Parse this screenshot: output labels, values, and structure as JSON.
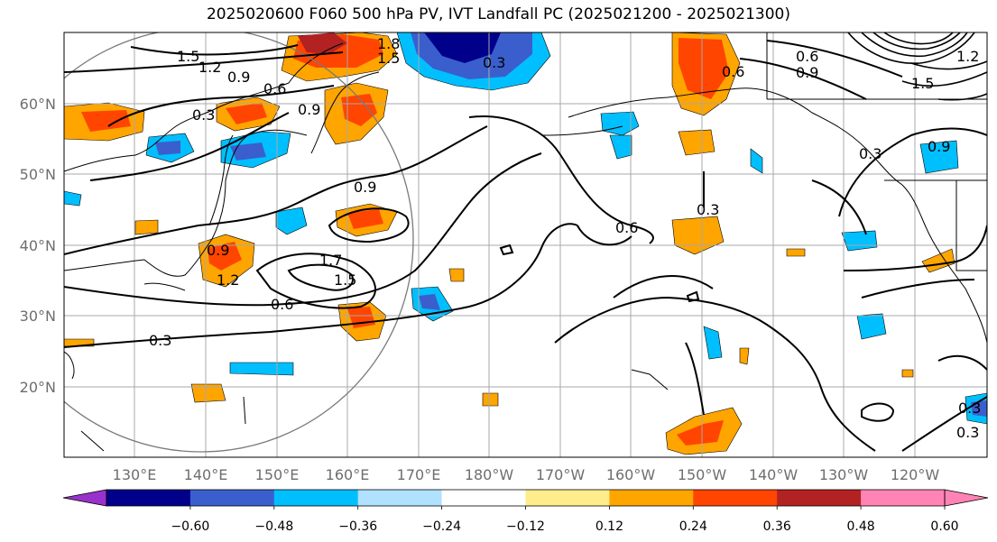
{
  "title": "2025020600 F060 500 hPa PV, IVT Landfall PC (2025021200 - 2025021300)",
  "lon_labels": [
    "130°E",
    "140°E",
    "150°E",
    "160°E",
    "170°E",
    "180°W",
    "170°W",
    "160°W",
    "150°W",
    "140°W",
    "130°W",
    "120°W"
  ],
  "lat_labels": [
    "60°N",
    "50°N",
    "40°N",
    "30°N",
    "20°N"
  ],
  "contour_labels": [
    "1.5",
    "1.2",
    "0.9",
    "0.6",
    "0.3",
    "1.8",
    "1.5",
    "0.3",
    "0.9",
    "0.9",
    "1.2",
    "1.7",
    "1.5",
    "0.6",
    "0.3",
    "0.9",
    "0.3",
    "0.6",
    "0.6",
    "0.9",
    "0.6",
    "0.9",
    "0.3",
    "1.5",
    "1.2",
    "0.3",
    "0.3"
  ],
  "colorbar": {
    "colors": [
      "#9932cc",
      "#00008b",
      "#3a5fcd",
      "#00bfff",
      "#b0e2ff",
      "#ffffff",
      "#ffec8b",
      "#ffa500",
      "#ff4500",
      "#b22222",
      "#ff83b4",
      "#ff83b4"
    ],
    "ticks": [
      "−0.60",
      "−0.48",
      "−0.36",
      "−0.24",
      "−0.12",
      "0.12",
      "0.24",
      "0.36",
      "0.48",
      "0.60"
    ]
  }
}
